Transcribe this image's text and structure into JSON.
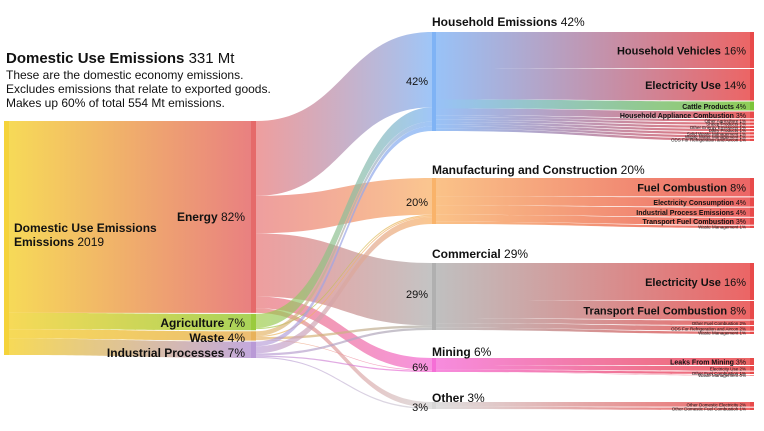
{
  "header": {
    "title": "Domestic Use Emissions",
    "title_value": "331 Mt",
    "desc_lines": [
      "These are the domestic economy emissions.",
      "Excludes emissions that relate to exported goods.",
      "Makes up 60% of total 554 Mt emissions."
    ]
  },
  "chart_data": {
    "type": "sankey",
    "title": "Domestic Use Emissions 331 Mt",
    "source_node": {
      "name": "Domestic Use Emissions",
      "year": "2019"
    },
    "sectors": [
      {
        "name": "Energy",
        "pct": "82%",
        "value": 82
      },
      {
        "name": "Agriculture",
        "pct": "7%",
        "value": 7
      },
      {
        "name": "Waste",
        "pct": "4%",
        "value": 4
      },
      {
        "name": "Industrial Processes",
        "pct": "7%",
        "value": 7
      }
    ],
    "end_uses": [
      {
        "name": "Household Emissions",
        "pct": "42%",
        "value": 42,
        "color": "#7fb3f5",
        "items": [
          {
            "name": "Household Vehicles",
            "pct": "16%",
            "value": 16
          },
          {
            "name": "Electricity Use",
            "pct": "14%",
            "value": 14
          },
          {
            "name": "Cattle Products",
            "pct": "4%",
            "value": 4
          },
          {
            "name": "Household Appliance Combustion",
            "pct": "3%",
            "value": 3
          },
          {
            "name": "Other Agriculture",
            "pct": "1%",
            "value": 1
          },
          {
            "name": "Sheep Products",
            "pct": "1%",
            "value": 1
          },
          {
            "name": "Other Energy Emissions",
            "pct": "1%",
            "value": 1
          },
          {
            "name": "Dairy Products",
            "pct": "1%",
            "value": 1
          },
          {
            "name": "Solid Waste Management",
            "pct": "1%",
            "value": 1
          },
          {
            "name": "Waste Water Management",
            "pct": "1%",
            "value": 1
          },
          {
            "name": "ODS For Refrigeration and Aircon",
            "pct": "1%",
            "value": 1
          }
        ]
      },
      {
        "name": "Manufacturing and Construction",
        "pct": "20%",
        "value": 20,
        "color": "#f9b36a",
        "items": [
          {
            "name": "Fuel Combustion",
            "pct": "8%",
            "value": 8
          },
          {
            "name": "Electricity Consumption",
            "pct": "4%",
            "value": 4
          },
          {
            "name": "Industrial Process Emissions",
            "pct": "4%",
            "value": 4
          },
          {
            "name": "Transport Fuel Combustion",
            "pct": "3%",
            "value": 3
          },
          {
            "name": "Waste Management",
            "pct": "1%",
            "value": 1
          }
        ]
      },
      {
        "name": "Commercial",
        "pct": "29%",
        "value": 29,
        "color": "#b0b0b0",
        "items": [
          {
            "name": "Electricity Use",
            "pct": "16%",
            "value": 16
          },
          {
            "name": "Transport Fuel Combustion",
            "pct": "8%",
            "value": 8
          },
          {
            "name": "Other Fuel Combustion",
            "pct": "2%",
            "value": 2
          },
          {
            "name": "ODS For Refrigeration and Aircon",
            "pct": "2%",
            "value": 2
          },
          {
            "name": "Waste Management",
            "pct": "1%",
            "value": 1
          }
        ]
      },
      {
        "name": "Mining",
        "pct": "6%",
        "value": 6,
        "color": "#f56fd6",
        "items": [
          {
            "name": "Leaks From Mining",
            "pct": "3%",
            "value": 3
          },
          {
            "name": "Electricity Use",
            "pct": "2%",
            "value": 2
          },
          {
            "name": "Other Fuel Combustion",
            "pct": "1%",
            "value": 1
          },
          {
            "name": "Waste Management",
            "pct": "0%",
            "value": 0
          }
        ]
      },
      {
        "name": "Other",
        "pct": "3%",
        "value": 3,
        "color": "#d6d6d6",
        "items": [
          {
            "name": "Other Domestic Electricity",
            "pct": "2%",
            "value": 2
          },
          {
            "name": "Other Domestic Fuel Combustion",
            "pct": "1%",
            "value": 1
          }
        ]
      }
    ],
    "colors": {
      "source": "#f5d33a",
      "energy": "#e56a6a",
      "agriculture": "#9acb3c",
      "waste": "#e8b25a",
      "industrial": "#b99ad6",
      "item_bar": "#e84a4a",
      "cattle": "#7bc43a"
    }
  }
}
